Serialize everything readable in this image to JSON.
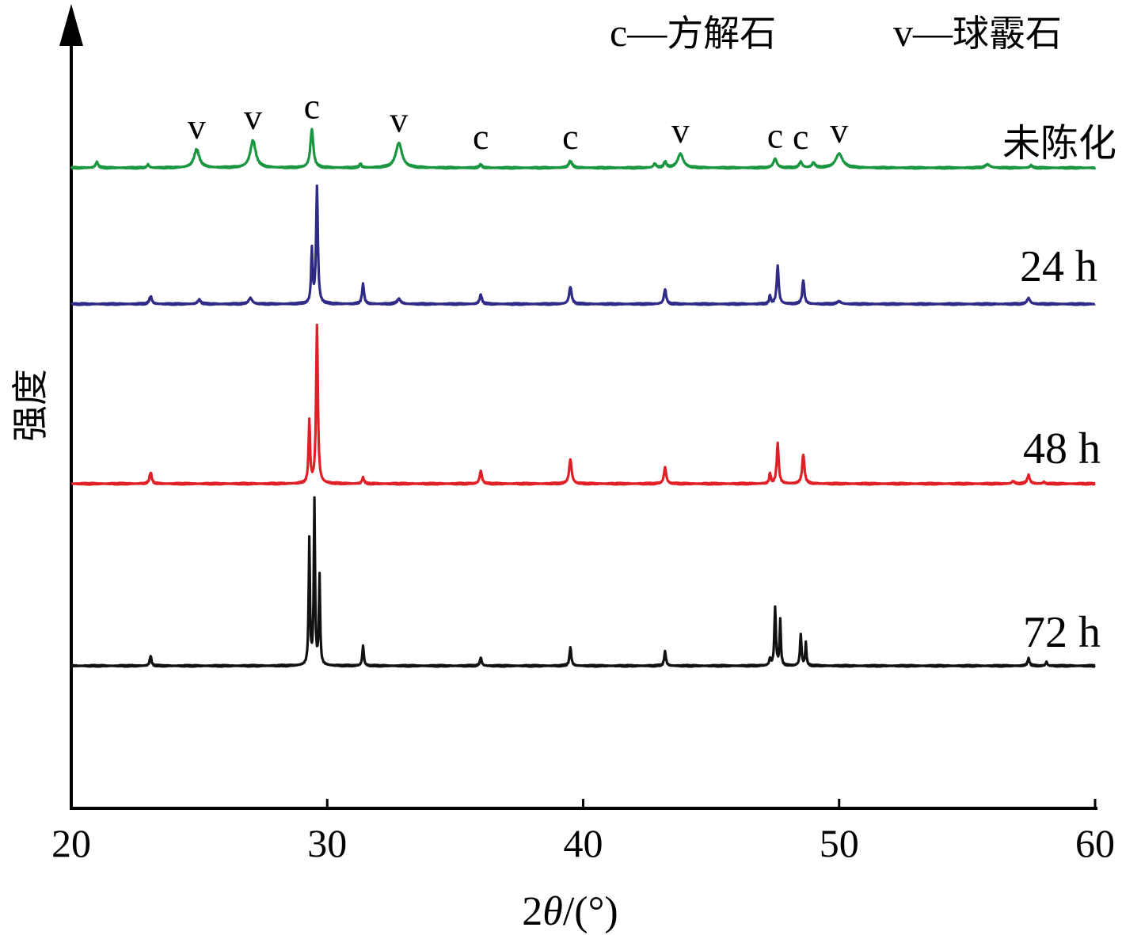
{
  "chart_data": {
    "type": "line",
    "xlabel": "2θ/(°)",
    "xlabel_prefix": "2",
    "xlabel_theta": "θ",
    "xlabel_suffix": "/(°)",
    "ylabel": "强度",
    "xlim": [
      20,
      60
    ],
    "x_ticks": [
      20,
      30,
      40,
      50,
      60
    ],
    "x_tick_labels": [
      "20",
      "30",
      "40",
      "50",
      "60"
    ],
    "y_ticks_shown": false,
    "grid": false,
    "legend": {
      "placement": "top-right",
      "entries": [
        {
          "symbol": "c",
          "dash": "—",
          "name": "方解石"
        },
        {
          "symbol": "v",
          "dash": "—",
          "name": "球霰石"
        }
      ]
    },
    "peak_markers": [
      {
        "label": "v",
        "x": 24.9
      },
      {
        "label": "v",
        "x": 27.1
      },
      {
        "label": "c",
        "x": 29.4
      },
      {
        "label": "v",
        "x": 32.8
      },
      {
        "label": "c",
        "x": 36.0
      },
      {
        "label": "c",
        "x": 39.5
      },
      {
        "label": "v",
        "x": 43.8
      },
      {
        "label": "c",
        "x": 47.5
      },
      {
        "label": "c",
        "x": 48.5
      },
      {
        "label": "v",
        "x": 50.0
      }
    ],
    "series": [
      {
        "name": "未陈化",
        "color": "#1a9641",
        "peaks": [
          {
            "x": 21.0,
            "h": 0.07,
            "w": 0.1
          },
          {
            "x": 23.0,
            "h": 0.04,
            "w": 0.08
          },
          {
            "x": 24.9,
            "h": 0.22,
            "w": 0.22
          },
          {
            "x": 27.1,
            "h": 0.33,
            "w": 0.22
          },
          {
            "x": 29.4,
            "h": 0.46,
            "w": 0.12
          },
          {
            "x": 31.3,
            "h": 0.05,
            "w": 0.08
          },
          {
            "x": 32.8,
            "h": 0.3,
            "w": 0.25
          },
          {
            "x": 36.0,
            "h": 0.04,
            "w": 0.1
          },
          {
            "x": 39.5,
            "h": 0.08,
            "w": 0.14
          },
          {
            "x": 42.8,
            "h": 0.05,
            "w": 0.1
          },
          {
            "x": 43.2,
            "h": 0.07,
            "w": 0.1
          },
          {
            "x": 43.8,
            "h": 0.17,
            "w": 0.22
          },
          {
            "x": 47.5,
            "h": 0.11,
            "w": 0.14
          },
          {
            "x": 48.5,
            "h": 0.07,
            "w": 0.12
          },
          {
            "x": 49.0,
            "h": 0.06,
            "w": 0.12
          },
          {
            "x": 50.0,
            "h": 0.17,
            "w": 0.28
          },
          {
            "x": 55.8,
            "h": 0.04,
            "w": 0.2
          },
          {
            "x": 57.5,
            "h": 0.03,
            "w": 0.1
          }
        ]
      },
      {
        "name": "24 h",
        "color": "#2f2a85",
        "peaks": [
          {
            "x": 23.1,
            "h": 0.09,
            "w": 0.1
          },
          {
            "x": 25.0,
            "h": 0.05,
            "w": 0.12
          },
          {
            "x": 27.0,
            "h": 0.07,
            "w": 0.14
          },
          {
            "x": 29.4,
            "h": 0.62,
            "w": 0.06
          },
          {
            "x": 29.6,
            "h": 1.35,
            "w": 0.07
          },
          {
            "x": 31.4,
            "h": 0.23,
            "w": 0.08
          },
          {
            "x": 32.8,
            "h": 0.06,
            "w": 0.14
          },
          {
            "x": 36.0,
            "h": 0.11,
            "w": 0.09
          },
          {
            "x": 39.5,
            "h": 0.2,
            "w": 0.1
          },
          {
            "x": 43.2,
            "h": 0.17,
            "w": 0.09
          },
          {
            "x": 47.3,
            "h": 0.1,
            "w": 0.06
          },
          {
            "x": 47.6,
            "h": 0.44,
            "w": 0.08
          },
          {
            "x": 48.6,
            "h": 0.28,
            "w": 0.08
          },
          {
            "x": 50.0,
            "h": 0.03,
            "w": 0.16
          },
          {
            "x": 57.4,
            "h": 0.07,
            "w": 0.12
          }
        ]
      },
      {
        "name": "48 h",
        "color": "#e02027",
        "peaks": [
          {
            "x": 23.1,
            "h": 0.13,
            "w": 0.09
          },
          {
            "x": 29.3,
            "h": 0.72,
            "w": 0.06
          },
          {
            "x": 29.6,
            "h": 1.82,
            "w": 0.07
          },
          {
            "x": 31.4,
            "h": 0.07,
            "w": 0.08
          },
          {
            "x": 36.0,
            "h": 0.15,
            "w": 0.09
          },
          {
            "x": 39.5,
            "h": 0.28,
            "w": 0.1
          },
          {
            "x": 43.2,
            "h": 0.19,
            "w": 0.09
          },
          {
            "x": 47.3,
            "h": 0.12,
            "w": 0.06
          },
          {
            "x": 47.6,
            "h": 0.46,
            "w": 0.08
          },
          {
            "x": 48.6,
            "h": 0.34,
            "w": 0.09
          },
          {
            "x": 56.8,
            "h": 0.03,
            "w": 0.1
          },
          {
            "x": 57.4,
            "h": 0.1,
            "w": 0.1
          },
          {
            "x": 58.0,
            "h": 0.02,
            "w": 0.08
          }
        ]
      },
      {
        "name": "72 h",
        "color": "#111111",
        "peaks": [
          {
            "x": 23.1,
            "h": 0.12,
            "w": 0.07
          },
          {
            "x": 29.3,
            "h": 1.5,
            "w": 0.05
          },
          {
            "x": 29.5,
            "h": 1.95,
            "w": 0.05
          },
          {
            "x": 29.7,
            "h": 1.05,
            "w": 0.05
          },
          {
            "x": 31.4,
            "h": 0.24,
            "w": 0.06
          },
          {
            "x": 36.0,
            "h": 0.1,
            "w": 0.07
          },
          {
            "x": 39.5,
            "h": 0.22,
            "w": 0.07
          },
          {
            "x": 43.2,
            "h": 0.17,
            "w": 0.07
          },
          {
            "x": 47.3,
            "h": 0.08,
            "w": 0.06
          },
          {
            "x": 47.5,
            "h": 0.7,
            "w": 0.06
          },
          {
            "x": 47.7,
            "h": 0.55,
            "w": 0.05
          },
          {
            "x": 48.5,
            "h": 0.37,
            "w": 0.06
          },
          {
            "x": 48.7,
            "h": 0.27,
            "w": 0.05
          },
          {
            "x": 57.4,
            "h": 0.09,
            "w": 0.08
          },
          {
            "x": 58.1,
            "h": 0.05,
            "w": 0.06
          }
        ]
      }
    ]
  }
}
